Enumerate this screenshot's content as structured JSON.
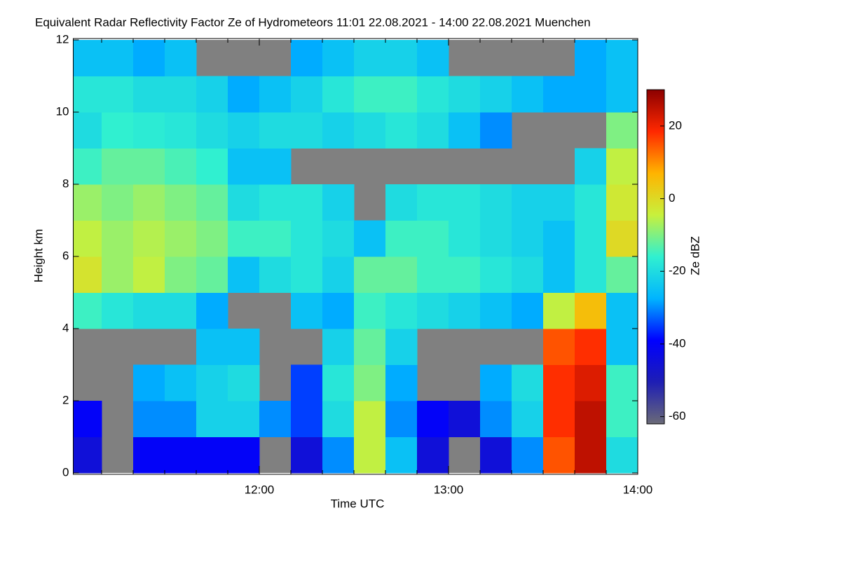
{
  "chart_data": {
    "type": "heatmap",
    "title": "Equivalent Radar Reflectivity Factor Ze of Hydrometeors   11:01 22.08.2021 - 14:00 22.08.2021 Muenchen",
    "x_label": "Time UTC",
    "y_label": "Height km",
    "colorbar_label": "Ze dBZ",
    "xlim": [
      661,
      840
    ],
    "xticks": [
      {
        "value": 720,
        "label": "12:00"
      },
      {
        "value": 780,
        "label": "13:00"
      },
      {
        "value": 840,
        "label": "14:00"
      }
    ],
    "xminorticks": [
      670,
      680,
      690,
      700,
      710,
      730,
      740,
      750,
      760,
      770,
      790,
      800,
      810,
      820,
      830
    ],
    "ylim": [
      0,
      12
    ],
    "yticks": [
      0,
      2,
      4,
      6,
      8,
      10,
      12
    ],
    "zlim": [
      -62,
      30
    ],
    "zticks": [
      -60,
      -40,
      -20,
      0,
      20
    ],
    "background": "#808080",
    "colormap": [
      "#6a6a78",
      "#1e1eb4",
      "#0000ff",
      "#00b4ff",
      "#30f0d0",
      "#c8f03c",
      "#ffb400",
      "#ff2800",
      "#8c0000"
    ],
    "x_edges": [
      661,
      670,
      680,
      690,
      700,
      710,
      720,
      730,
      740,
      750,
      760,
      770,
      780,
      790,
      800,
      810,
      820,
      830,
      840
    ],
    "y_edges": [
      0,
      1,
      2,
      3,
      4,
      5,
      6,
      7,
      8,
      9,
      10,
      11,
      12
    ],
    "z": [
      [
        -45,
        null,
        -40,
        -40,
        -40,
        -40,
        null,
        -45,
        -30,
        -5,
        -25,
        -45,
        null,
        -45,
        -30,
        15,
        25,
        -20
      ],
      [
        -40,
        null,
        -30,
        -30,
        -22,
        -22,
        -30,
        -35,
        -20,
        -5,
        -30,
        -40,
        -45,
        -30,
        -22,
        18,
        25,
        -15
      ],
      [
        null,
        null,
        -28,
        -25,
        -22,
        -20,
        null,
        -35,
        -18,
        -10,
        -28,
        null,
        null,
        -28,
        -20,
        18,
        22,
        -15
      ],
      [
        null,
        null,
        null,
        null,
        -25,
        -25,
        null,
        null,
        -22,
        -12,
        -22,
        null,
        null,
        null,
        null,
        15,
        18,
        -25
      ],
      [
        -15,
        -18,
        -20,
        -20,
        -28,
        null,
        null,
        -25,
        -28,
        -15,
        -18,
        -20,
        -22,
        -25,
        -28,
        -5,
        5,
        -25
      ],
      [
        -2,
        -8,
        -5,
        -10,
        -12,
        -25,
        -20,
        -18,
        -22,
        -12,
        -12,
        -15,
        -15,
        -18,
        -20,
        -25,
        -18,
        -12
      ],
      [
        -5,
        -8,
        -6,
        -8,
        -10,
        -15,
        -15,
        -18,
        -20,
        -25,
        -15,
        -15,
        -18,
        -20,
        -22,
        -25,
        -18,
        0
      ],
      [
        -8,
        -10,
        -8,
        -10,
        -12,
        -20,
        -18,
        -18,
        -22,
        null,
        -20,
        -18,
        -18,
        -20,
        -22,
        -22,
        -18,
        -3
      ],
      [
        -15,
        -12,
        -12,
        -14,
        -16,
        -25,
        -25,
        null,
        null,
        null,
        null,
        null,
        null,
        null,
        null,
        null,
        -22,
        -5
      ],
      [
        -20,
        -16,
        -17,
        -18,
        -20,
        -22,
        -20,
        -20,
        -22,
        -20,
        -18,
        -20,
        -25,
        -30,
        null,
        null,
        null,
        -10
      ],
      [
        -18,
        -18,
        -20,
        -20,
        -22,
        -28,
        -25,
        -22,
        -18,
        -15,
        -15,
        -18,
        -20,
        -22,
        -25,
        -28,
        -28,
        -25
      ],
      [
        -25,
        -25,
        -28,
        -25,
        null,
        null,
        null,
        -28,
        -25,
        -22,
        -22,
        -25,
        null,
        null,
        null,
        null,
        -28,
        -25
      ]
    ]
  }
}
